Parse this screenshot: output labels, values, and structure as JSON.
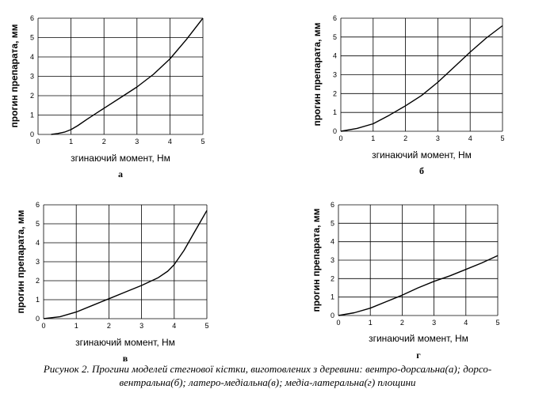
{
  "caption": {
    "line1": "Рисунок 2. Прогини моделей стегнової кістки, виготовлених з деревини: вентро-дорсальна(а); дорсо-",
    "line2": "вентральна(б); латеро-медіальна(в); медіа-латеральна(г) площини"
  },
  "chart_data": [
    {
      "type": "line",
      "panel_label": "а",
      "xlabel": "згинаючий момент, Нм",
      "ylabel": "прогин препарата, мм",
      "xlim": [
        0,
        5
      ],
      "ylim": [
        0,
        6
      ],
      "xticks": [
        "0",
        "1",
        "2",
        "3",
        "4",
        "5"
      ],
      "yticks": [
        "0",
        "1",
        "2",
        "3",
        "4",
        "5",
        "6"
      ],
      "grid": true,
      "series": [
        {
          "x": [
            0.4,
            0.6,
            0.8,
            1.0,
            1.2,
            1.5,
            2.0,
            2.5,
            3.0,
            3.5,
            4.0,
            4.5,
            5.0
          ],
          "y": [
            0.0,
            0.05,
            0.12,
            0.25,
            0.45,
            0.8,
            1.35,
            1.9,
            2.45,
            3.1,
            3.9,
            4.9,
            6.0
          ]
        }
      ]
    },
    {
      "type": "line",
      "panel_label": "б",
      "xlabel": "згинаючий момент, Нм",
      "ylabel": "прогин препарата, мм",
      "xlim": [
        0,
        5
      ],
      "ylim": [
        0,
        6
      ],
      "xticks": [
        "0",
        "1",
        "2",
        "3",
        "4",
        "5"
      ],
      "yticks": [
        "0",
        "1",
        "2",
        "3",
        "4",
        "5",
        "6"
      ],
      "grid": true,
      "series": [
        {
          "x": [
            0.0,
            0.5,
            1.0,
            1.5,
            2.0,
            2.5,
            3.0,
            3.5,
            4.0,
            4.5,
            5.0
          ],
          "y": [
            0.0,
            0.15,
            0.4,
            0.85,
            1.35,
            1.9,
            2.6,
            3.4,
            4.2,
            4.95,
            5.6
          ]
        }
      ]
    },
    {
      "type": "line",
      "panel_label": "в",
      "xlabel": "згинаючий момент, Нм",
      "ylabel": "прогин препарата, мм",
      "xlim": [
        0,
        5
      ],
      "ylim": [
        0,
        6
      ],
      "xticks": [
        "0",
        "1",
        "2",
        "3",
        "4",
        "5"
      ],
      "yticks": [
        "0",
        "1",
        "2",
        "3",
        "4",
        "5",
        "6"
      ],
      "grid": true,
      "series": [
        {
          "x": [
            0.0,
            0.5,
            1.0,
            1.5,
            2.0,
            2.5,
            3.0,
            3.5,
            3.8,
            4.0,
            4.3,
            4.6,
            5.0
          ],
          "y": [
            0.0,
            0.1,
            0.35,
            0.7,
            1.05,
            1.4,
            1.75,
            2.15,
            2.5,
            2.85,
            3.6,
            4.5,
            5.7
          ]
        }
      ]
    },
    {
      "type": "line",
      "panel_label": "г",
      "xlabel": "згинаючий момент, Нм",
      "ylabel": "прогин препарата, мм",
      "xlim": [
        0,
        5
      ],
      "ylim": [
        0,
        6
      ],
      "xticks": [
        "0",
        "1",
        "2",
        "3",
        "4",
        "5"
      ],
      "yticks": [
        "0",
        "1",
        "2",
        "3",
        "4",
        "5",
        "6"
      ],
      "grid": true,
      "series": [
        {
          "x": [
            0.0,
            0.5,
            1.0,
            1.5,
            2.0,
            2.5,
            3.0,
            3.5,
            4.0,
            4.5,
            5.0
          ],
          "y": [
            0.0,
            0.15,
            0.4,
            0.75,
            1.1,
            1.5,
            1.85,
            2.15,
            2.5,
            2.85,
            3.25
          ]
        }
      ]
    }
  ]
}
